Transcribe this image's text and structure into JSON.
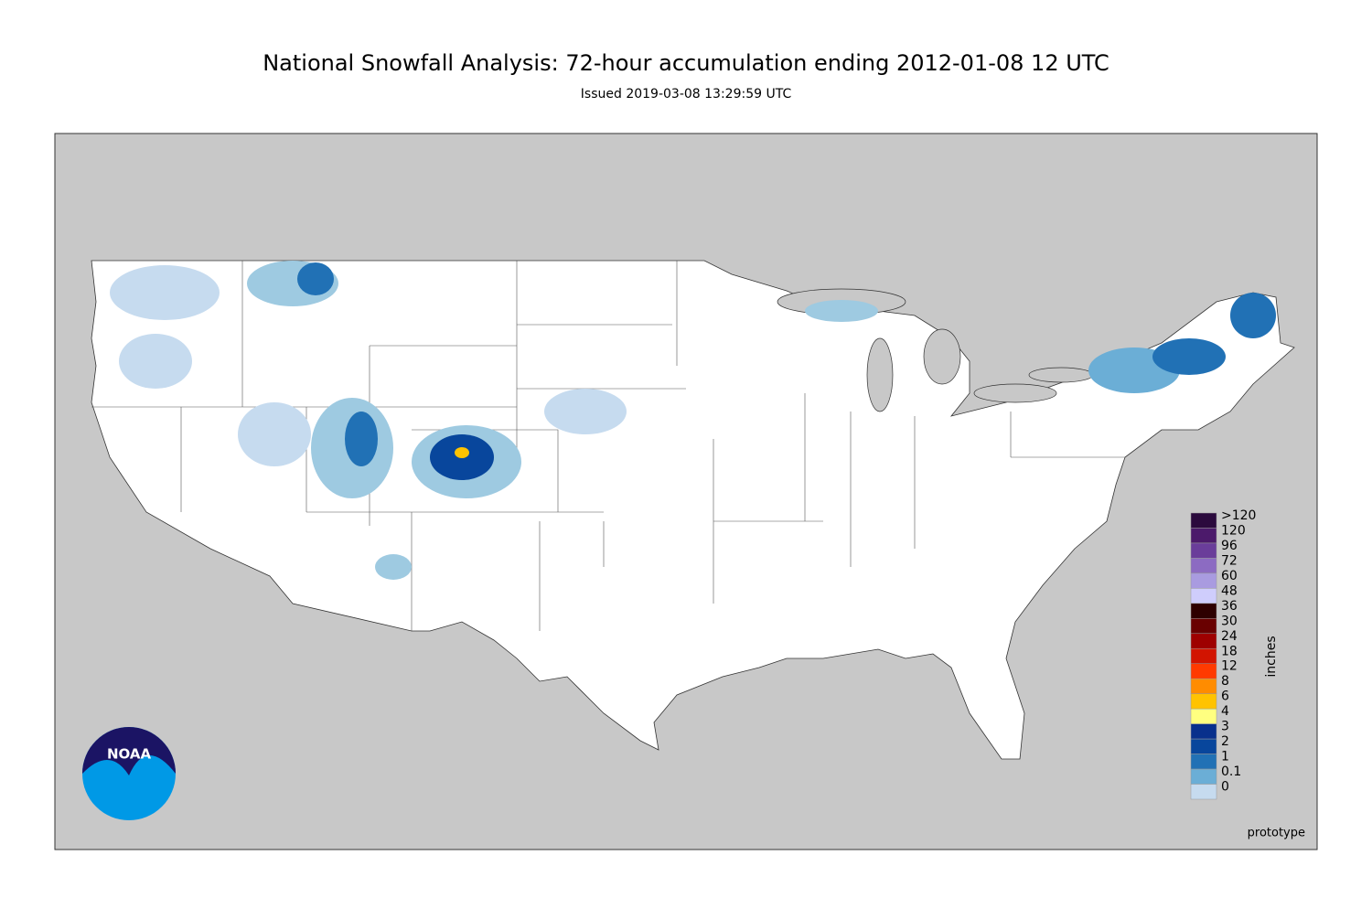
{
  "title": "National Snowfall Analysis: 72-hour accumulation ending 2012-01-08 12 UTC",
  "subtitle": "Issued 2019-03-08 13:29:59 UTC",
  "logo": "NOAA",
  "watermark": "prototype",
  "legend": {
    "title": "inches",
    "items": [
      {
        "label": ">120",
        "color": "#2b0a3d"
      },
      {
        "label": "120",
        "color": "#4c1a6b"
      },
      {
        "label": "96",
        "color": "#6a3d9a"
      },
      {
        "label": "72",
        "color": "#8c6bc2"
      },
      {
        "label": "60",
        "color": "#a99be0"
      },
      {
        "label": "48",
        "color": "#cfcdfc"
      },
      {
        "label": "36",
        "color": "#2e0000"
      },
      {
        "label": "30",
        "color": "#690000"
      },
      {
        "label": "24",
        "color": "#9e0000"
      },
      {
        "label": "18",
        "color": "#d21400"
      },
      {
        "label": "12",
        "color": "#ff3a00"
      },
      {
        "label": "8",
        "color": "#ff8c00"
      },
      {
        "label": "6",
        "color": "#ffc300"
      },
      {
        "label": "4",
        "color": "#ffff80"
      },
      {
        "label": "3",
        "color": "#08308c"
      },
      {
        "label": "2",
        "color": "#08469c"
      },
      {
        "label": "1",
        "color": "#2171b5"
      },
      {
        "label": "0.1",
        "color": "#6baed6"
      },
      {
        "label": "0",
        "color": "#c6dbef"
      }
    ]
  }
}
